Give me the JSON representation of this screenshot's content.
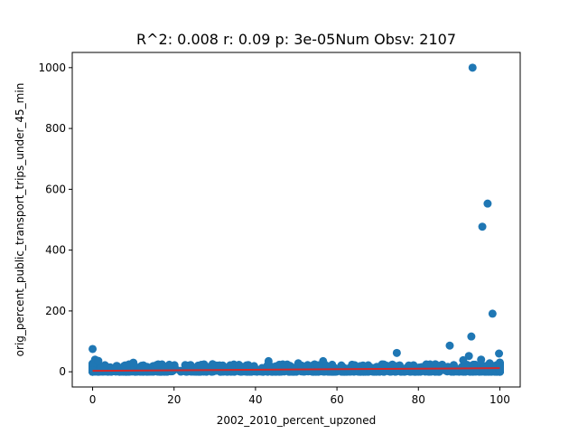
{
  "chart_data": {
    "type": "scatter",
    "title": "R^2: 0.008 r: 0.09 p: 3e-05Num Obsv: 2107",
    "xlabel": "2002_2010_percent_upzoned",
    "ylabel": "orig_percent_public_transport_trips_under_45_min",
    "xlim": [
      -5,
      105
    ],
    "ylim": [
      -50,
      1050
    ],
    "xticks": [
      0,
      20,
      40,
      60,
      80,
      100
    ],
    "yticks": [
      0,
      200,
      400,
      600,
      800,
      1000
    ],
    "marker_color": "#1f77b4",
    "fit_color": "#d62728",
    "fit_line": {
      "x": [
        0,
        100
      ],
      "y": [
        3,
        12
      ]
    },
    "outliers": [
      {
        "x": 93.3,
        "y": 1000
      },
      {
        "x": 97.0,
        "y": 553
      },
      {
        "x": 95.7,
        "y": 477
      },
      {
        "x": 98.2,
        "y": 191
      },
      {
        "x": 93.0,
        "y": 116
      },
      {
        "x": 87.7,
        "y": 86
      },
      {
        "x": 0,
        "y": 75
      },
      {
        "x": 74.7,
        "y": 62
      },
      {
        "x": 99.8,
        "y": 60
      },
      {
        "x": 92.4,
        "y": 52
      },
      {
        "x": 95.4,
        "y": 40
      },
      {
        "x": 91.0,
        "y": 38
      },
      {
        "x": 43.2,
        "y": 35
      },
      {
        "x": 56.6,
        "y": 35
      },
      {
        "x": 0.6,
        "y": 40
      },
      {
        "x": 1.4,
        "y": 36
      },
      {
        "x": 10.0,
        "y": 30
      },
      {
        "x": 50.5,
        "y": 28
      },
      {
        "x": 97.5,
        "y": 28
      },
      {
        "x": 71.5,
        "y": 24
      },
      {
        "x": 15.7,
        "y": 22
      },
      {
        "x": 27.5,
        "y": 18
      },
      {
        "x": 34.0,
        "y": 15
      },
      {
        "x": 79.2,
        "y": 15
      }
    ],
    "cluster": {
      "description_only": false,
      "dense_x": [
        0,
        100
      ],
      "dense_y_range": [
        0,
        25
      ]
    }
  }
}
